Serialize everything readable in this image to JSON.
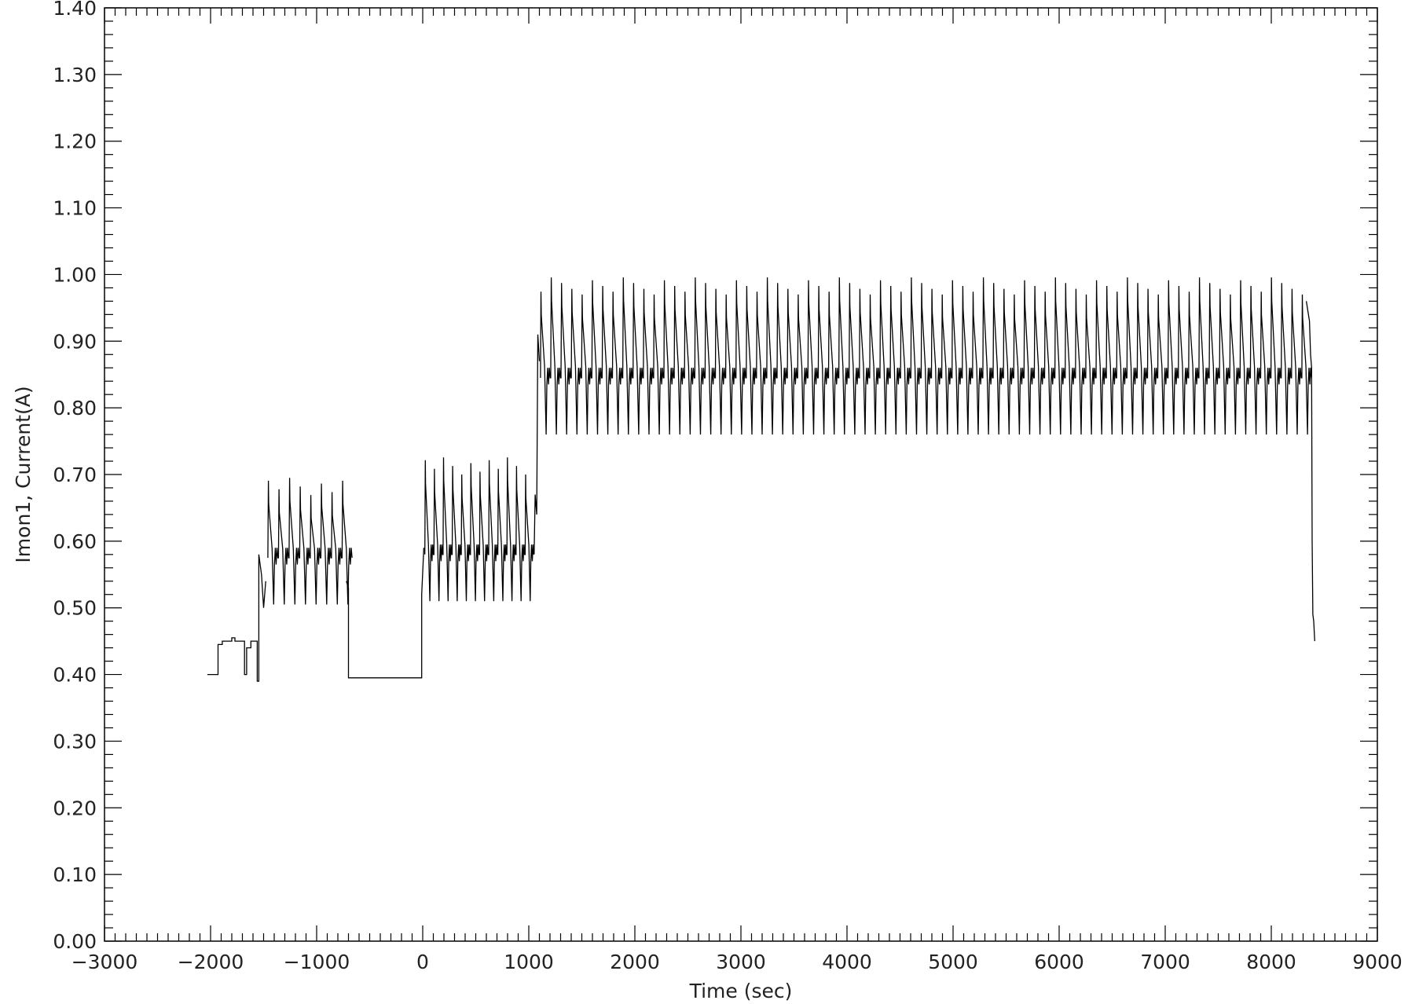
{
  "chart_data": {
    "type": "line",
    "xlabel": "Time (sec)",
    "ylabel": "Imon1, Current(A)",
    "xlim": [
      -3000,
      9000
    ],
    "ylim": [
      0.0,
      1.4
    ],
    "x_major_ticks": [
      -3000,
      -2000,
      -1000,
      0,
      1000,
      2000,
      3000,
      4000,
      5000,
      6000,
      7000,
      8000,
      9000
    ],
    "x_tick_labels": [
      "−3000",
      "−2000",
      "−1000",
      "0",
      "1000",
      "2000",
      "3000",
      "4000",
      "5000",
      "6000",
      "7000",
      "8000",
      "9000"
    ],
    "y_major_ticks": [
      0.0,
      0.1,
      0.2,
      0.3,
      0.4,
      0.5,
      0.6,
      0.7,
      0.8,
      0.9,
      1.0,
      1.1,
      1.2,
      1.3,
      1.4
    ],
    "y_tick_labels": [
      "0.00",
      "0.10",
      "0.20",
      "0.30",
      "0.40",
      "0.50",
      "0.60",
      "0.70",
      "0.80",
      "0.90",
      "1.00",
      "1.10",
      "1.20",
      "1.30",
      "1.40"
    ],
    "grid": false,
    "line_color": "#000000",
    "series": [
      {
        "segments": [
          {
            "kind": "steps",
            "points": [
              [
                -2030,
                0.4
              ],
              [
                -1930,
                0.4
              ],
              [
                -1930,
                0.445
              ],
              [
                -1890,
                0.445
              ],
              [
                -1890,
                0.45
              ],
              [
                -1800,
                0.45
              ],
              [
                -1800,
                0.455
              ],
              [
                -1770,
                0.455
              ],
              [
                -1770,
                0.45
              ],
              [
                -1680,
                0.45
              ],
              [
                -1680,
                0.4
              ],
              [
                -1660,
                0.4
              ],
              [
                -1660,
                0.44
              ],
              [
                -1620,
                0.44
              ],
              [
                -1620,
                0.45
              ],
              [
                -1560,
                0.45
              ],
              [
                -1560,
                0.39
              ],
              [
                -1545,
                0.39
              ],
              [
                -1545,
                0.58
              ],
              [
                -1520,
                0.55
              ],
              [
                -1500,
                0.5
              ],
              [
                -1480,
                0.54
              ]
            ]
          },
          {
            "kind": "sawtooth",
            "start": -1460,
            "end": -720,
            "period": 100,
            "high": 0.71,
            "low": 0.505,
            "mid": 0.575
          },
          {
            "kind": "steps",
            "points": [
              [
                -720,
                0.54
              ],
              [
                -700,
                0.53
              ],
              [
                -700,
                0.395
              ],
              [
                -10,
                0.395
              ],
              [
                -10,
                0.52
              ],
              [
                10,
                0.59
              ]
            ]
          },
          {
            "kind": "sawtooth",
            "start": 20,
            "end": 1050,
            "period": 86,
            "high": 0.715,
            "low": 0.51,
            "mid": 0.58
          },
          {
            "kind": "steps",
            "points": [
              [
                1050,
                0.58
              ],
              [
                1060,
                0.67
              ],
              [
                1075,
                0.64
              ],
              [
                1085,
                0.91
              ],
              [
                1100,
                0.87
              ]
            ]
          },
          {
            "kind": "sawtooth",
            "start": 1110,
            "end": 8330,
            "period": 97,
            "high": 0.985,
            "low": 0.76,
            "mid": 0.845
          },
          {
            "kind": "steps",
            "points": [
              [
                8330,
                0.96
              ],
              [
                8360,
                0.93
              ],
              [
                8370,
                0.88
              ],
              [
                8380,
                0.86
              ],
              [
                8385,
                0.6
              ],
              [
                8392,
                0.49
              ],
              [
                8400,
                0.48
              ],
              [
                8410,
                0.45
              ]
            ]
          }
        ]
      }
    ]
  }
}
